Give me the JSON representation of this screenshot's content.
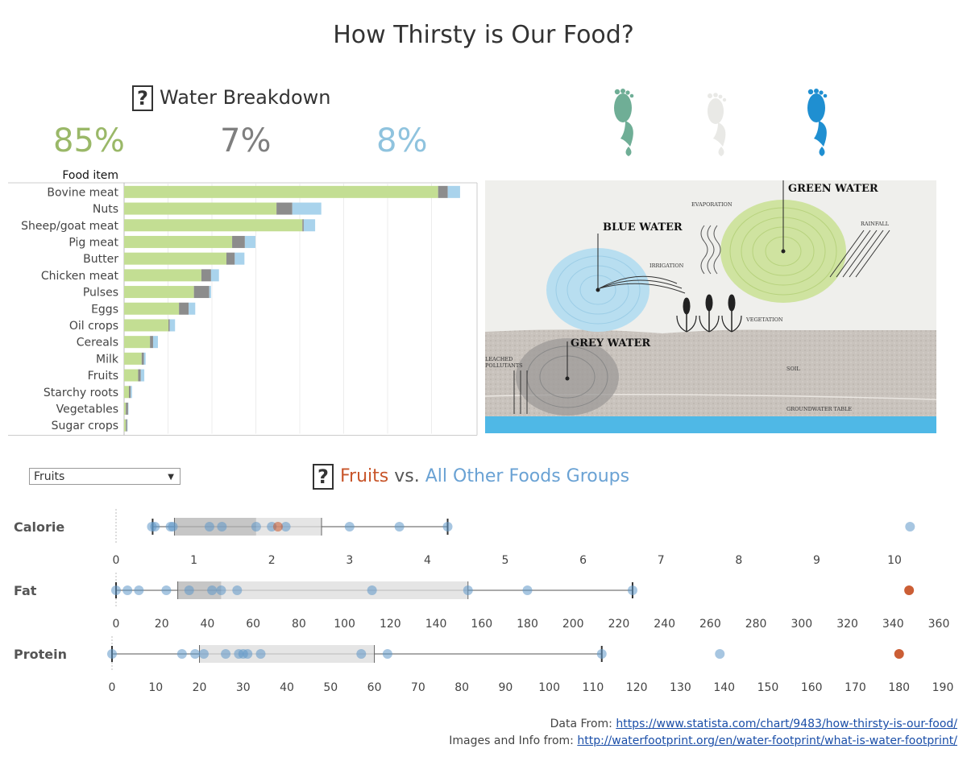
{
  "title": "How Thirsty is Our Food?",
  "breakdown": {
    "heading": "Water Breakdown",
    "help_icon": "question-mark-icon",
    "green_pct": "85%",
    "grey_pct": "7%",
    "blue_pct": "8%"
  },
  "colors": {
    "green": "#c3de93",
    "grey": "#8c8c8c",
    "blue": "#a9d3ec",
    "green_text": "#9ab868",
    "grey_text": "#7f7f7f",
    "blue_text": "#8fc3de",
    "selected": "#c8552a",
    "others": "#5e97c9"
  },
  "diagram": {
    "green_water": "GREEN WATER",
    "blue_water": "BLUE WATER",
    "grey_water": "GREY WATER",
    "evaporation": "EVAPORATION",
    "rainfall": "RAINFALL",
    "irrigation": "IRRIGATION",
    "vegetation": "VEGETATION",
    "leached_1": "LEACHED",
    "leached_2": "POLLUTANTS",
    "soil": "SOIL",
    "groundwater": "GROUNDWATER TABLE"
  },
  "filter": {
    "value": "Fruits"
  },
  "comparison": {
    "selected": "Fruits",
    "vs": "vs.",
    "others": "All Other Foods Groups"
  },
  "chart_data": [
    {
      "type": "bar",
      "stacked": true,
      "orientation": "horizontal",
      "header": "Food item",
      "xlim": [
        0,
        80
      ],
      "categories": [
        "Bovine meat",
        "Nuts",
        "Sheep/goat meat",
        "Pig meat",
        "Butter",
        "Chicken meat",
        "Pulses",
        "Eggs",
        "Oil crops",
        "Cereals",
        "Milk",
        "Fruits",
        "Starchy roots",
        "Vegetables",
        "Sugar crops"
      ],
      "series": [
        {
          "values": [
            71.5,
            34.7,
            40.6,
            24.6,
            23.3,
            17.6,
            15.9,
            12.5,
            10.1,
            5.9,
            4.0,
            3.2,
            1.1,
            0.4,
            0.4
          ]
        },
        {
          "values": [
            2.2,
            3.6,
            0.3,
            2.9,
            1.9,
            2.2,
            3.5,
            2.2,
            0.3,
            0.7,
            0.5,
            0.6,
            0.4,
            0.5,
            0.3
          ]
        },
        {
          "values": [
            2.8,
            6.6,
            2.6,
            2.4,
            2.2,
            1.8,
            0.4,
            1.5,
            1.2,
            1.1,
            0.4,
            0.8,
            0.3,
            0.1,
            0.1
          ]
        }
      ]
    },
    {
      "type": "scatter",
      "variant": "box-plot",
      "rows": [
        {
          "label": "Calorie",
          "ticks": [
            0,
            1,
            2,
            3,
            4,
            5,
            6,
            7,
            8,
            9,
            10
          ],
          "xlim": [
            0,
            10.5
          ],
          "box": {
            "whisker_low": 0.47,
            "q1": 0.75,
            "median": 1.8,
            "q3": 2.64,
            "whisker_high": 4.26
          },
          "selected_value": 2.08,
          "others": [
            0.46,
            0.5,
            0.7,
            0.73,
            1.2,
            1.36,
            1.8,
            2.0,
            2.18,
            3.0,
            3.64,
            4.26,
            10.2
          ]
        },
        {
          "label": "Fat",
          "ticks": [
            0,
            20,
            40,
            60,
            80,
            100,
            120,
            140,
            160,
            180,
            200,
            220,
            240,
            260,
            280,
            300,
            320,
            340,
            360
          ],
          "xlim": [
            0,
            360
          ],
          "box": {
            "whisker_low": 0,
            "q1": 27,
            "median": 46,
            "q3": 154,
            "whisker_high": 226
          },
          "selected_value": 347,
          "others": [
            0,
            5,
            10,
            22,
            32,
            42,
            46,
            53,
            112,
            154,
            180,
            226
          ]
        },
        {
          "label": "Protein",
          "ticks": [
            0,
            10,
            20,
            30,
            40,
            50,
            60,
            70,
            80,
            90,
            100,
            110,
            120,
            130,
            140,
            150,
            160,
            170,
            180,
            190
          ],
          "xlim": [
            0,
            190
          ],
          "box": {
            "whisker_low": 0,
            "q1": 20,
            "median": 20,
            "q3": 60,
            "whisker_high": 112
          },
          "selected_value": 180,
          "others": [
            0,
            16,
            19,
            21,
            26,
            29,
            30,
            31,
            34,
            57,
            63,
            112,
            139
          ]
        }
      ]
    }
  ],
  "footer": {
    "data_label": "Data From: ",
    "data_url": "https://www.statista.com/chart/9483/how-thirsty-is-our-food/",
    "images_label": "Images and Info from: ",
    "images_url": "http://waterfootprint.org/en/water-footprint/what-is-water-footprint/"
  }
}
